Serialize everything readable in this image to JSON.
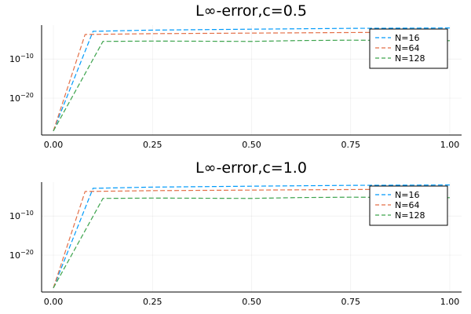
{
  "chart_data": [
    {
      "type": "line",
      "title": "L∞-error,c=0.5",
      "xlim": [
        0,
        1
      ],
      "yscale": "log10",
      "ylim_exp": [
        -29,
        -2
      ],
      "xticks": [
        0,
        0.25,
        0.5,
        0.75,
        1
      ],
      "xticklabels": [
        "0.00",
        "0.25",
        "0.50",
        "0.75",
        "1.00"
      ],
      "yticks_exp": [
        -10,
        -20
      ],
      "grid": true,
      "legend_position": "top-right",
      "series": [
        {
          "name": "N=16",
          "color": "#009AFA",
          "x": [
            0,
            0.1,
            0.25,
            0.5,
            0.75,
            1.0
          ],
          "y": [
            1e-28,
            0.0003,
            0.0006,
            0.001,
            0.0016,
            0.002
          ]
        },
        {
          "name": "N=64",
          "color": "#E36F47",
          "x": [
            0,
            0.08,
            0.25,
            0.5,
            0.75,
            1.0
          ],
          "y": [
            1e-28,
            5e-05,
            8e-05,
            0.00011,
            0.00015,
            0.0002
          ]
        },
        {
          "name": "N=128",
          "color": "#3EA44E",
          "x": [
            0,
            0.125,
            0.25,
            0.5,
            0.62,
            0.75,
            1.0
          ],
          "y": [
            1e-28,
            1e-06,
            1.2e-06,
            1e-06,
            1.6e-06,
            2e-06,
            1.5e-06
          ]
        }
      ]
    },
    {
      "type": "line",
      "title": "L∞-error,c=1.0",
      "xlim": [
        0,
        1
      ],
      "yscale": "log10",
      "ylim_exp": [
        -29,
        -2
      ],
      "xticks": [
        0,
        0.25,
        0.5,
        0.75,
        1
      ],
      "xticklabels": [
        "0.00",
        "0.25",
        "0.50",
        "0.75",
        "1.00"
      ],
      "yticks_exp": [
        -10,
        -20
      ],
      "grid": true,
      "legend_position": "top-right",
      "series": [
        {
          "name": "N=16",
          "color": "#009AFA",
          "x": [
            0,
            0.1,
            0.25,
            0.5,
            0.75,
            1.0
          ],
          "y": [
            1e-28,
            0.0003,
            0.0006,
            0.001,
            0.0016,
            0.002
          ]
        },
        {
          "name": "N=64",
          "color": "#E36F47",
          "x": [
            0,
            0.08,
            0.25,
            0.5,
            0.75,
            1.0
          ],
          "y": [
            1e-28,
            5e-05,
            8e-05,
            0.00011,
            0.00015,
            0.0002
          ]
        },
        {
          "name": "N=128",
          "color": "#3EA44E",
          "x": [
            0,
            0.125,
            0.25,
            0.5,
            0.62,
            0.75,
            1.0
          ],
          "y": [
            1e-28,
            1e-06,
            1.2e-06,
            1e-06,
            1.6e-06,
            2e-06,
            1.5e-06
          ]
        }
      ]
    }
  ]
}
